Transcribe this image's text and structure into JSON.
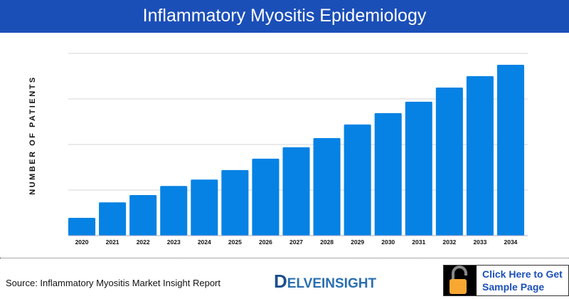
{
  "header": {
    "title": "Inflammatory Myositis Epidemiology"
  },
  "chart_data": {
    "type": "bar",
    "title": "Inflammatory Myositis Epidemiology",
    "ylabel": "NUMBER OF PATIENTS",
    "xlabel": "",
    "categories": [
      "2020",
      "2021",
      "2022",
      "2023",
      "2024",
      "2025",
      "2026",
      "2027",
      "2028",
      "2029",
      "2030",
      "2031",
      "2032",
      "2033",
      "2034"
    ],
    "values": [
      0.39,
      0.73,
      0.89,
      1.09,
      1.23,
      1.44,
      1.69,
      1.94,
      2.14,
      2.44,
      2.69,
      2.94,
      3.25,
      3.5,
      3.75
    ],
    "ylim": [
      0,
      4
    ],
    "grid": true,
    "y_tick_labels_shown": false,
    "bar_color": "#0582e4"
  },
  "footer": {
    "source": "Source: Inflammatory Myositis Market Insight Report",
    "logo": "DELVEINSIGHT",
    "cta_line1": "Click Here to Get",
    "cta_line2": "Sample Page"
  },
  "colors": {
    "header": "#1b4fb8",
    "lock": "#f8a832"
  }
}
